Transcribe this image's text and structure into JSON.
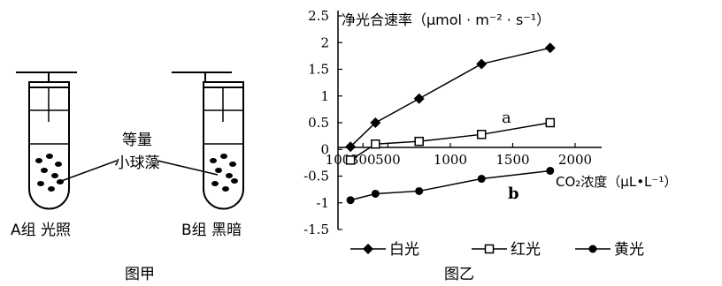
{
  "figure_a": {
    "caption": "图甲",
    "label_algae_line1": "等量",
    "label_algae_line2": "小球藻",
    "tube_a_label": "A组  光照",
    "tube_b_label": "B组  黑暗"
  },
  "figure_b": {
    "caption": "图乙",
    "annotation_a": "a",
    "annotation_b": "b"
  },
  "chart_data": {
    "type": "line",
    "ylabel": "净光合速率（μmol · m⁻² · s⁻¹）",
    "xlabel": "CO₂浓度（μL•L⁻¹）",
    "xlim": [
      100,
      2000
    ],
    "ylim": [
      -1.5,
      2.5
    ],
    "x_ticks": [
      "100",
      "300",
      "500",
      "1000",
      "1500",
      "2000"
    ],
    "y_ticks": [
      "2.5",
      "2",
      "1.5",
      "1",
      "0.5",
      "0",
      "-0.5",
      "-1",
      "-1.5"
    ],
    "series": [
      {
        "name": "白光",
        "marker": "diamond",
        "x": [
          200,
          400,
          750,
          1250,
          1800
        ],
        "y": [
          0.05,
          0.5,
          0.95,
          1.6,
          1.9
        ]
      },
      {
        "name": "红光",
        "marker": "square-open",
        "x": [
          200,
          400,
          750,
          1250,
          1800
        ],
        "y": [
          -0.2,
          0.1,
          0.15,
          0.28,
          0.5
        ]
      },
      {
        "name": "黄光",
        "marker": "circle",
        "x": [
          200,
          400,
          750,
          1250,
          1800
        ],
        "y": [
          -0.95,
          -0.83,
          -0.78,
          -0.55,
          -0.4
        ]
      }
    ]
  }
}
